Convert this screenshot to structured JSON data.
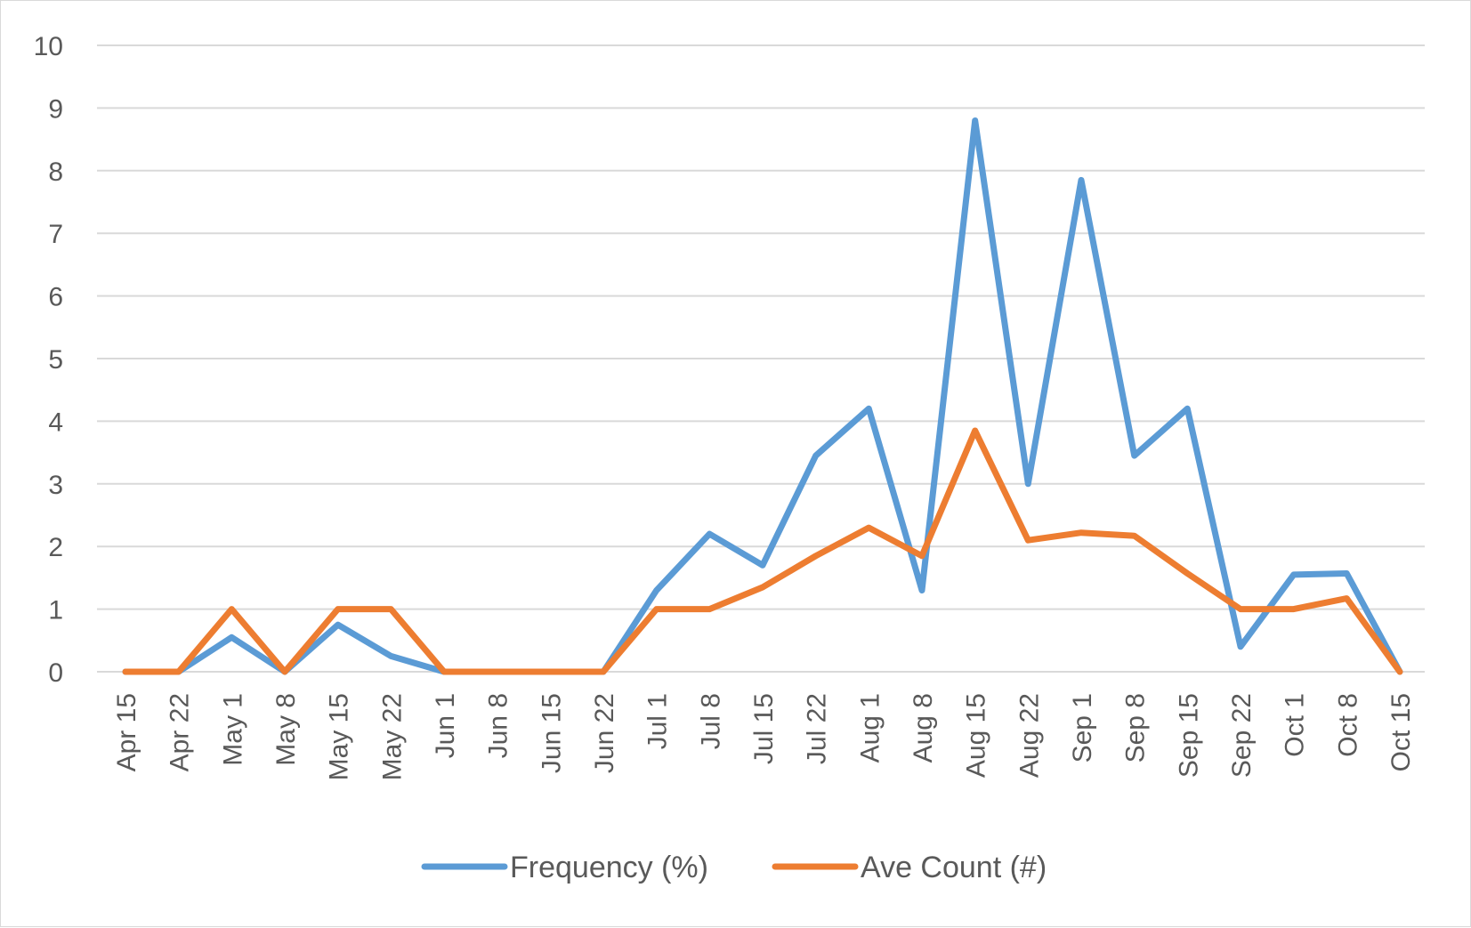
{
  "chart_data": {
    "type": "line",
    "title": "",
    "xlabel": "",
    "ylabel": "",
    "ylim": [
      0,
      10
    ],
    "yticks": [
      0,
      1,
      2,
      3,
      4,
      5,
      6,
      7,
      8,
      9,
      10
    ],
    "grid": true,
    "legend_position": "bottom",
    "categories": [
      "Apr 15",
      "Apr 22",
      "May 1",
      "May 8",
      "May 15",
      "May 22",
      "Jun 1",
      "Jun 8",
      "Jun 15",
      "Jun 22",
      "Jul 1",
      "Jul 8",
      "Jul 15",
      "Jul 22",
      "Aug 1",
      "Aug 8",
      "Aug 15",
      "Aug 22",
      "Sep 1",
      "Sep 8",
      "Sep 15",
      "Sep 22",
      "Oct 1",
      "Oct 8",
      "Oct 15"
    ],
    "series": [
      {
        "name": "Frequency (%)",
        "color": "#5B9BD5",
        "values": [
          0,
          0,
          0.55,
          0,
          0.75,
          0.25,
          0,
          0,
          0,
          0,
          1.3,
          2.2,
          1.7,
          3.45,
          4.2,
          1.3,
          8.8,
          3.0,
          7.85,
          3.45,
          4.2,
          0.4,
          1.55,
          1.57,
          0
        ]
      },
      {
        "name": "Ave Count (#)",
        "color": "#ED7D31",
        "values": [
          0,
          0,
          1.0,
          0,
          1.0,
          1.0,
          0,
          0,
          0,
          0,
          1.0,
          1.0,
          1.35,
          1.85,
          2.3,
          1.85,
          3.85,
          2.1,
          2.22,
          2.17,
          1.57,
          1.0,
          1.0,
          1.17,
          0
        ]
      }
    ]
  }
}
